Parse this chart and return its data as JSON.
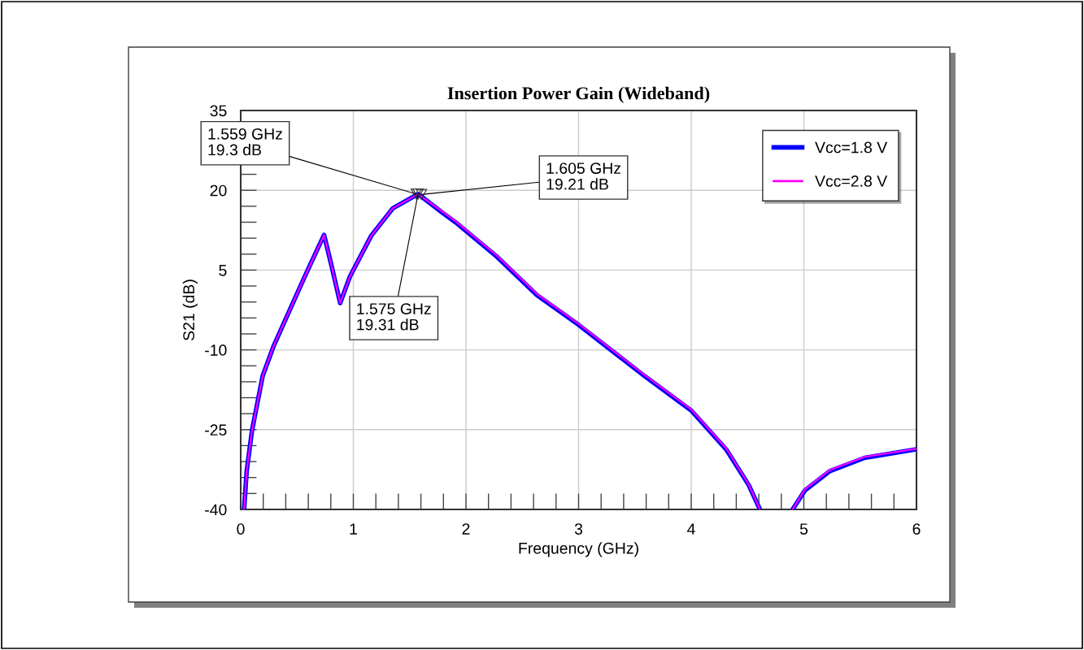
{
  "chart_data": {
    "type": "line",
    "title": "Insertion Power Gain (Wideband)",
    "xlabel": "Frequency (GHz)",
    "ylabel": "S21 (dB)",
    "xlim": [
      0,
      6
    ],
    "xticks": [
      0,
      1,
      2,
      3,
      4,
      5,
      6
    ],
    "ylim": [
      -40,
      35
    ],
    "yticks": [
      -40,
      -25,
      -10,
      5,
      20,
      35
    ],
    "grid": true,
    "legend": "top right",
    "marker": "none",
    "line_style": "solid",
    "series": [
      {
        "name": "Vcc=1.8 V",
        "color": "#0000ff",
        "x": [
          0.03,
          0.053,
          0.1,
          0.195,
          0.29,
          0.44,
          0.58,
          0.74,
          0.8,
          0.883,
          0.97,
          1.16,
          1.35,
          1.575,
          1.79,
          1.906,
          2.27,
          2.63,
          3.0,
          3.59,
          4.0,
          4.31,
          4.51,
          4.61,
          null,
          4.9,
          5.01,
          5.23,
          5.54,
          6.0
        ],
        "values": [
          -40,
          -32.8,
          -25.2,
          -14.9,
          -9.4,
          -2.3,
          4.3,
          11.6,
          6.4,
          -1.2,
          3.8,
          11.5,
          16.6,
          19.3,
          15.8,
          14.0,
          7.6,
          0.3,
          -5.3,
          -15.0,
          -21.4,
          -28.7,
          -35.4,
          -40,
          null,
          -40,
          -36.4,
          -32.8,
          -30.3,
          -28.7
        ]
      },
      {
        "name": "Vcc=2.8 V",
        "color": "#ff00ff",
        "x": [
          0.03,
          0.053,
          0.1,
          0.195,
          0.29,
          0.44,
          0.58,
          0.74,
          0.8,
          0.883,
          0.97,
          1.16,
          1.35,
          1.575,
          1.79,
          1.906,
          2.27,
          2.63,
          3.0,
          3.59,
          4.0,
          4.31,
          4.51,
          4.61,
          null,
          4.9,
          5.01,
          5.23,
          5.54,
          6.0
        ],
        "values": [
          -40,
          -32.8,
          -25.2,
          -14.9,
          -9.4,
          -2.3,
          4.3,
          11.6,
          6.4,
          -1.2,
          3.8,
          11.5,
          16.6,
          19.3,
          16.0,
          14.2,
          7.8,
          0.5,
          -5.1,
          -14.8,
          -21.2,
          -28.5,
          -35.3,
          -40,
          null,
          -40,
          -36.2,
          -32.6,
          -30.1,
          -28.6
        ]
      }
    ],
    "annotations": [
      {
        "text": "1.559 GHz\n19.3 dB",
        "x": 1.559,
        "y": 19.3
      },
      {
        "text": "1.575 GHz\n19.31 dB",
        "x": 1.575,
        "y": 19.31
      },
      {
        "text": "1.605 GHz\n19.21 dB",
        "x": 1.605,
        "y": 19.21
      }
    ]
  }
}
